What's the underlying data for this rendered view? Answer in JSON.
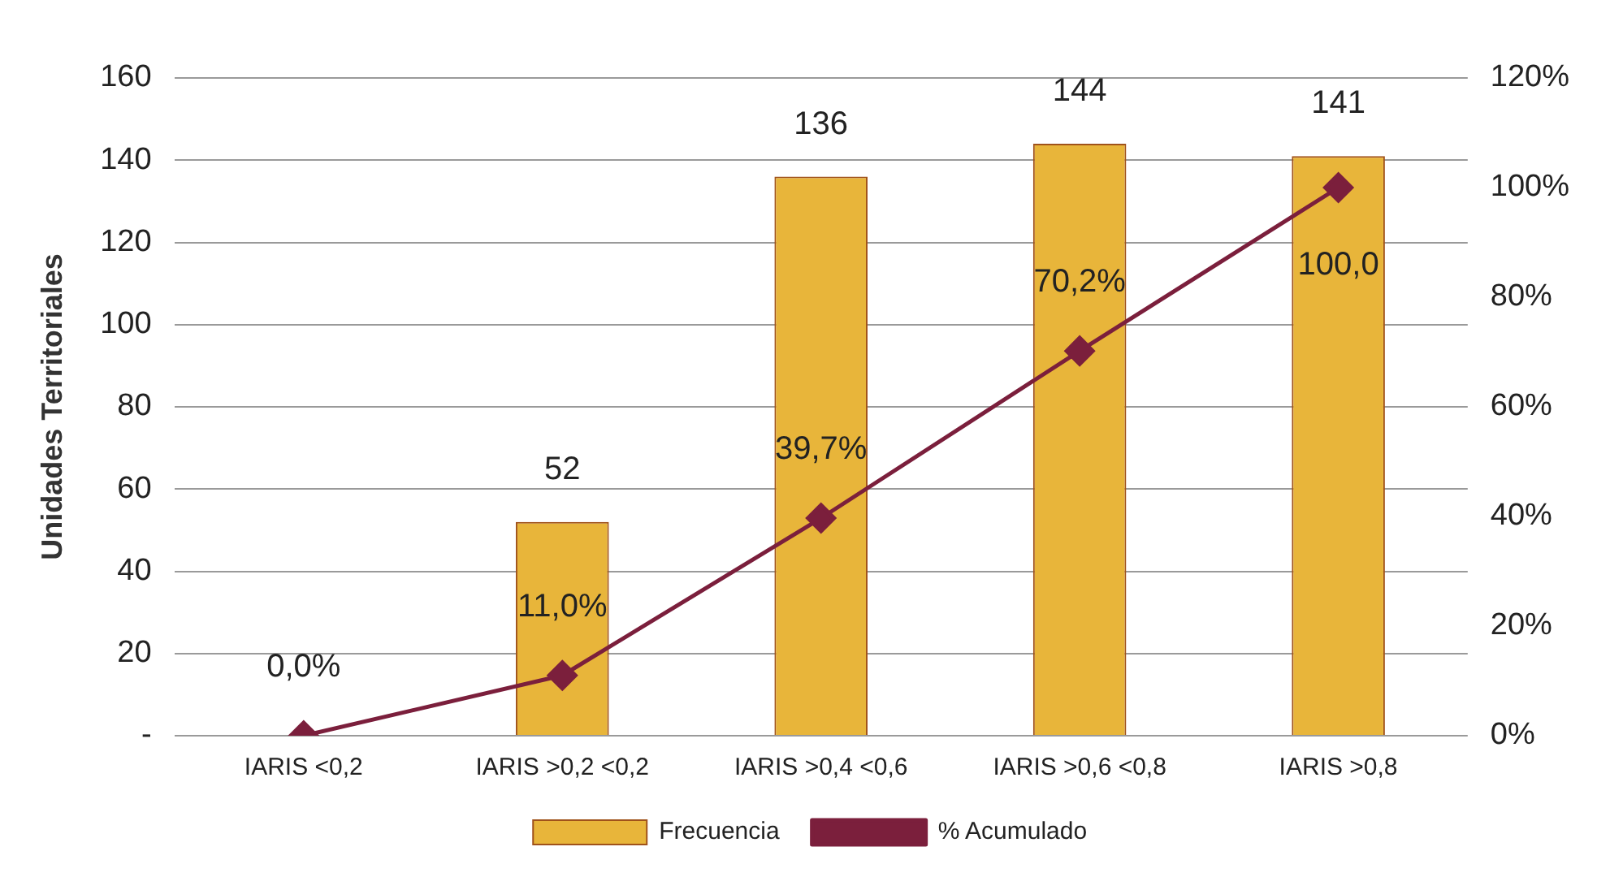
{
  "chart_data": {
    "type": "bar",
    "ylabel": "Unidades Territoriales",
    "categories": [
      "IARIS <0,2",
      "IARIS >0,2 <0,2",
      "IARIS >0,4 <0,6",
      "IARIS >0,6 <0,8",
      "IARIS >0,8"
    ],
    "series": [
      {
        "name": "Frecuencia",
        "color": "#e8b53a",
        "values": [
          0,
          52,
          136,
          144,
          141
        ],
        "value_labels": [
          null,
          "52",
          "136",
          "144",
          "141"
        ]
      },
      {
        "name": "% Acumulado",
        "type": "line",
        "axis": "y2",
        "color": "#7b1f3c",
        "marker": "diamond",
        "line_style": "solid",
        "values": [
          0,
          11.0,
          39.7,
          70.2,
          100.0
        ],
        "value_labels": [
          "0,0%",
          "11,0%",
          "39,7%",
          "70,2%",
          "100,0"
        ]
      }
    ],
    "ylim": [
      0,
      160
    ],
    "yticks": [
      {
        "value": 0,
        "label": "-"
      },
      20,
      40,
      60,
      80,
      100,
      120,
      140,
      160
    ],
    "y2lim": [
      0,
      120
    ],
    "y2ticks": [
      {
        "value": 0,
        "label": "0%"
      },
      {
        "value": 20,
        "label": "20%"
      },
      {
        "value": 40,
        "label": "40%"
      },
      {
        "value": 60,
        "label": "60%"
      },
      {
        "value": 80,
        "label": "80%"
      },
      {
        "value": 100,
        "label": "100%"
      },
      {
        "value": 120,
        "label": "120%"
      }
    ],
    "grid": "y",
    "legend": "bottom"
  }
}
